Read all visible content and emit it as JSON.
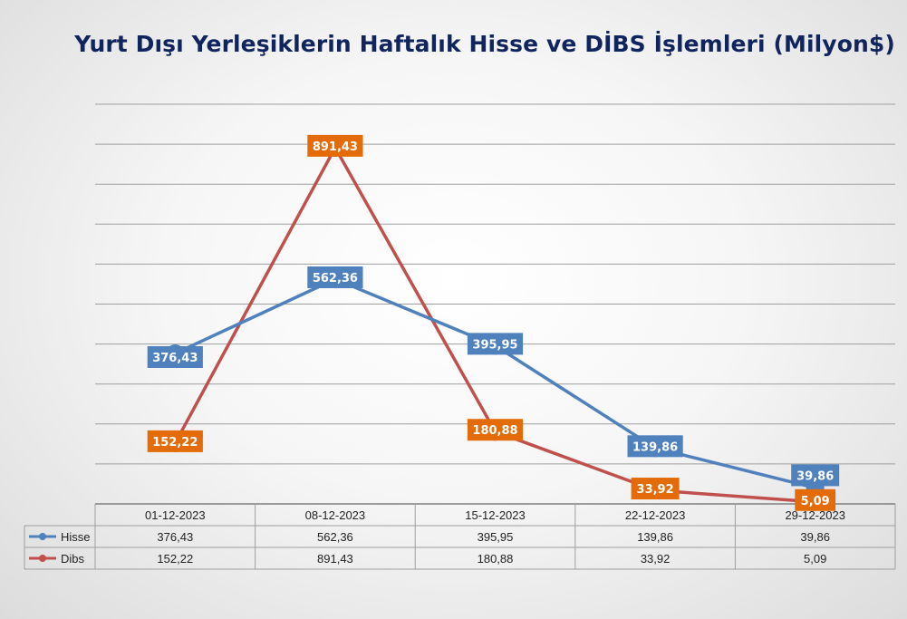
{
  "chart_data": {
    "type": "line",
    "title": "Yurt Dışı Yerleşiklerin Haftalık Hisse ve DİBS İşlemleri (Milyon$)",
    "categories": [
      "01-12-2023",
      "08-12-2023",
      "15-12-2023",
      "22-12-2023",
      "29-12-2023"
    ],
    "series": [
      {
        "name": "Hisse",
        "values": [
          376.43,
          562.36,
          395.95,
          139.86,
          39.86
        ],
        "labels": [
          "376,43",
          "562,36",
          "395,95",
          "139,86",
          "39,86"
        ],
        "color": "#4f81bd"
      },
      {
        "name": "Dibs",
        "values": [
          152.22,
          891.43,
          180.88,
          33.92,
          5.09
        ],
        "labels": [
          "152,22",
          "891,43",
          "180,88",
          "33,92",
          "5,09"
        ],
        "color": "#c0504d",
        "label_color": "#e36c09"
      }
    ],
    "ylim": [
      0,
      1000
    ],
    "grid": true,
    "legend": "data-table",
    "data_table": true
  }
}
